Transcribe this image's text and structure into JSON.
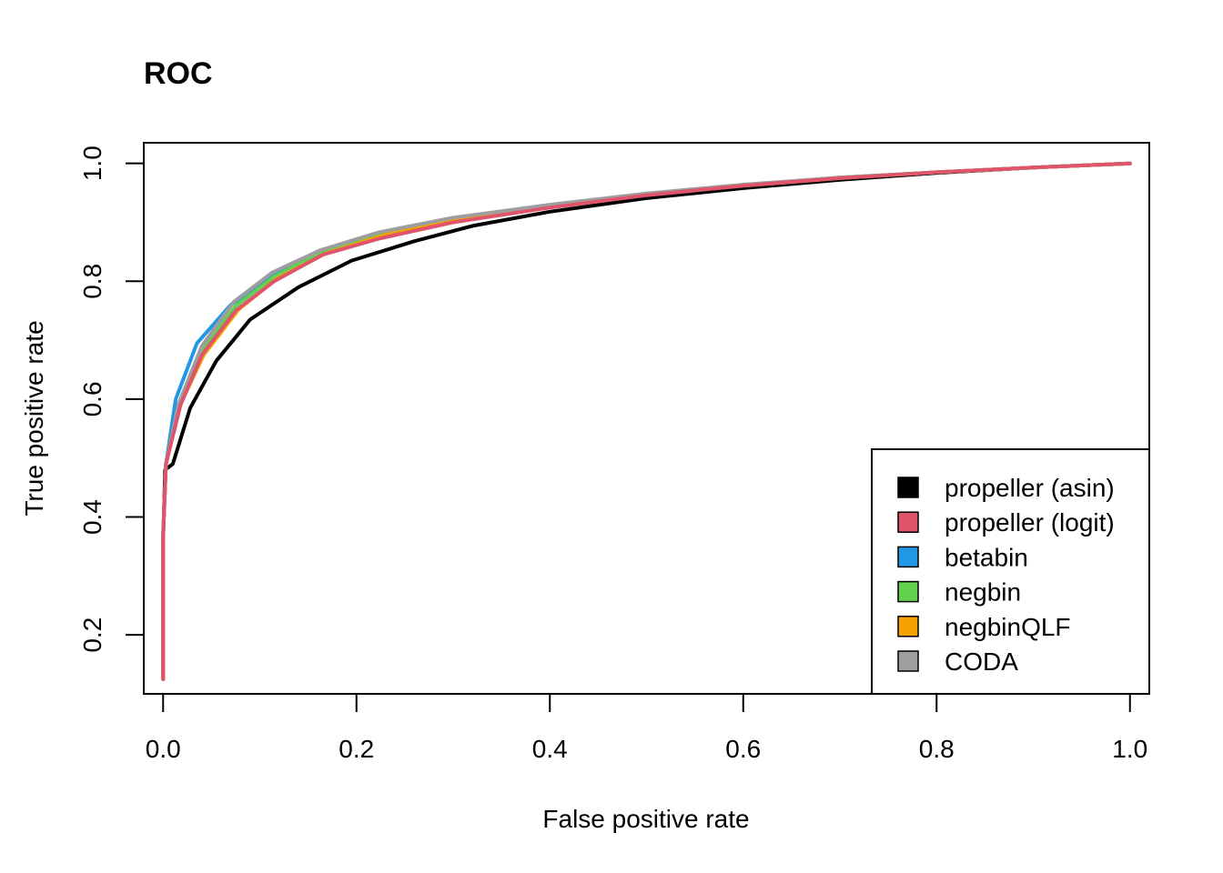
{
  "chart_data": {
    "type": "line",
    "title": "ROC",
    "xlabel": "False positive rate",
    "ylabel": "True positive rate",
    "xlim": [
      -0.02,
      1.02
    ],
    "ylim": [
      0.1,
      1.035
    ],
    "x_ticks": [
      0.0,
      0.2,
      0.4,
      0.6,
      0.8,
      1.0
    ],
    "x_tick_labels": [
      "0.0",
      "0.2",
      "0.4",
      "0.6",
      "0.8",
      "1.0"
    ],
    "y_ticks": [
      0.2,
      0.4,
      0.6,
      0.8,
      1.0
    ],
    "y_tick_labels": [
      "0.2",
      "0.4",
      "0.6",
      "0.8",
      "1.0"
    ],
    "grid": false,
    "legend_position": "bottom-right",
    "series": [
      {
        "name": "propeller (asin)",
        "color": "#000000",
        "x": [
          0.0,
          0.0,
          0.002,
          0.01,
          0.028,
          0.055,
          0.09,
          0.14,
          0.195,
          0.26,
          0.32,
          0.4,
          0.5,
          0.6,
          0.7,
          0.8,
          0.9,
          1.0
        ],
        "y": [
          0.125,
          0.36,
          0.48,
          0.49,
          0.585,
          0.665,
          0.735,
          0.79,
          0.835,
          0.868,
          0.894,
          0.918,
          0.941,
          0.958,
          0.972,
          0.984,
          0.993,
          1.0
        ]
      },
      {
        "name": "propeller (logit)",
        "color": "#DF536B",
        "x": [
          0.0,
          0.0,
          0.003,
          0.018,
          0.04,
          0.075,
          0.115,
          0.165,
          0.225,
          0.3,
          0.4,
          0.5,
          0.6,
          0.7,
          0.8,
          0.9,
          1.0
        ],
        "y": [
          0.125,
          0.37,
          0.49,
          0.59,
          0.675,
          0.75,
          0.8,
          0.845,
          0.873,
          0.9,
          0.925,
          0.946,
          0.962,
          0.975,
          0.985,
          0.993,
          1.0
        ]
      },
      {
        "name": "betabin",
        "color": "#2297E6",
        "x": [
          0.0,
          0.0,
          0.003,
          0.013,
          0.035,
          0.07,
          0.115,
          0.165,
          0.225,
          0.3,
          0.4,
          0.5,
          0.6,
          0.7,
          0.8,
          0.9,
          1.0
        ],
        "y": [
          0.125,
          0.37,
          0.49,
          0.6,
          0.695,
          0.76,
          0.81,
          0.85,
          0.878,
          0.904,
          0.928,
          0.948,
          0.963,
          0.976,
          0.985,
          0.993,
          1.0
        ]
      },
      {
        "name": "negbin",
        "color": "#61D04F",
        "x": [
          0.0,
          0.0,
          0.003,
          0.016,
          0.04,
          0.075,
          0.115,
          0.165,
          0.225,
          0.3,
          0.4,
          0.5,
          0.6,
          0.7,
          0.8,
          0.9,
          1.0
        ],
        "y": [
          0.125,
          0.37,
          0.49,
          0.59,
          0.685,
          0.758,
          0.808,
          0.85,
          0.88,
          0.905,
          0.928,
          0.948,
          0.963,
          0.976,
          0.985,
          0.993,
          1.0
        ]
      },
      {
        "name": "negbinQLF",
        "color": "#F5A200",
        "x": [
          0.0,
          0.0,
          0.003,
          0.016,
          0.042,
          0.078,
          0.118,
          0.168,
          0.228,
          0.3,
          0.4,
          0.5,
          0.6,
          0.7,
          0.8,
          0.9,
          1.0
        ],
        "y": [
          0.125,
          0.37,
          0.49,
          0.585,
          0.675,
          0.752,
          0.805,
          0.847,
          0.878,
          0.903,
          0.927,
          0.947,
          0.962,
          0.975,
          0.985,
          0.993,
          1.0
        ]
      },
      {
        "name": "CODA",
        "color": "#9E9E9E",
        "x": [
          0.0,
          0.0,
          0.003,
          0.016,
          0.04,
          0.073,
          0.113,
          0.163,
          0.223,
          0.3,
          0.4,
          0.5,
          0.6,
          0.7,
          0.8,
          0.9,
          1.0
        ],
        "y": [
          0.125,
          0.37,
          0.49,
          0.592,
          0.69,
          0.765,
          0.815,
          0.853,
          0.883,
          0.908,
          0.93,
          0.949,
          0.964,
          0.976,
          0.985,
          0.993,
          1.0
        ]
      }
    ]
  }
}
